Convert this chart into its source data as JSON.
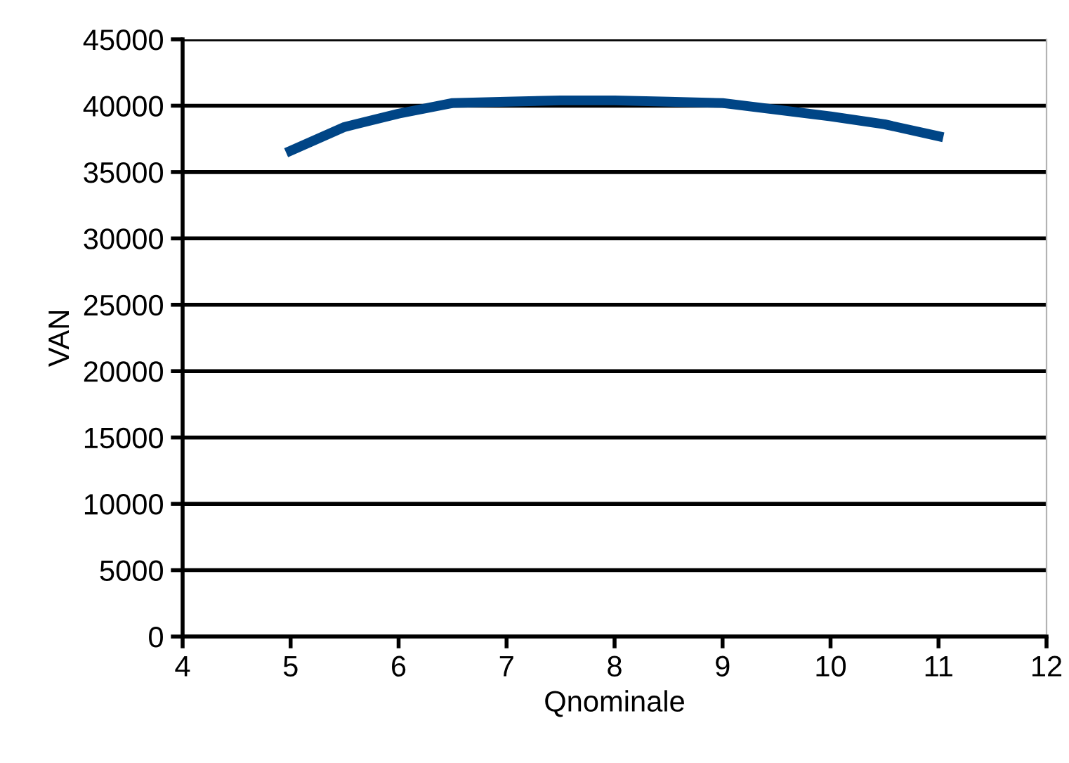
{
  "chart_data": {
    "type": "line",
    "xlabel": "Qnominale",
    "ylabel": "VAN",
    "x": [
      5,
      5.5,
      6,
      6.5,
      7,
      7.5,
      8,
      8.5,
      9,
      9.5,
      10,
      10.5,
      11
    ],
    "series": [
      {
        "color": "#004586",
        "values": [
          36600,
          38400,
          39400,
          40200,
          40300,
          40400,
          40400,
          40300,
          40200,
          39700,
          39200,
          38600,
          37700
        ]
      }
    ],
    "xlim": [
      4,
      12
    ],
    "xticks": [
      4,
      5,
      6,
      7,
      8,
      9,
      10,
      11,
      12
    ],
    "ylim": [
      0,
      45000
    ],
    "yticks": [
      0,
      5000,
      10000,
      15000,
      20000,
      25000,
      30000,
      35000,
      40000,
      45000
    ],
    "grid": "y",
    "marker": "none",
    "line_style": "solid"
  }
}
